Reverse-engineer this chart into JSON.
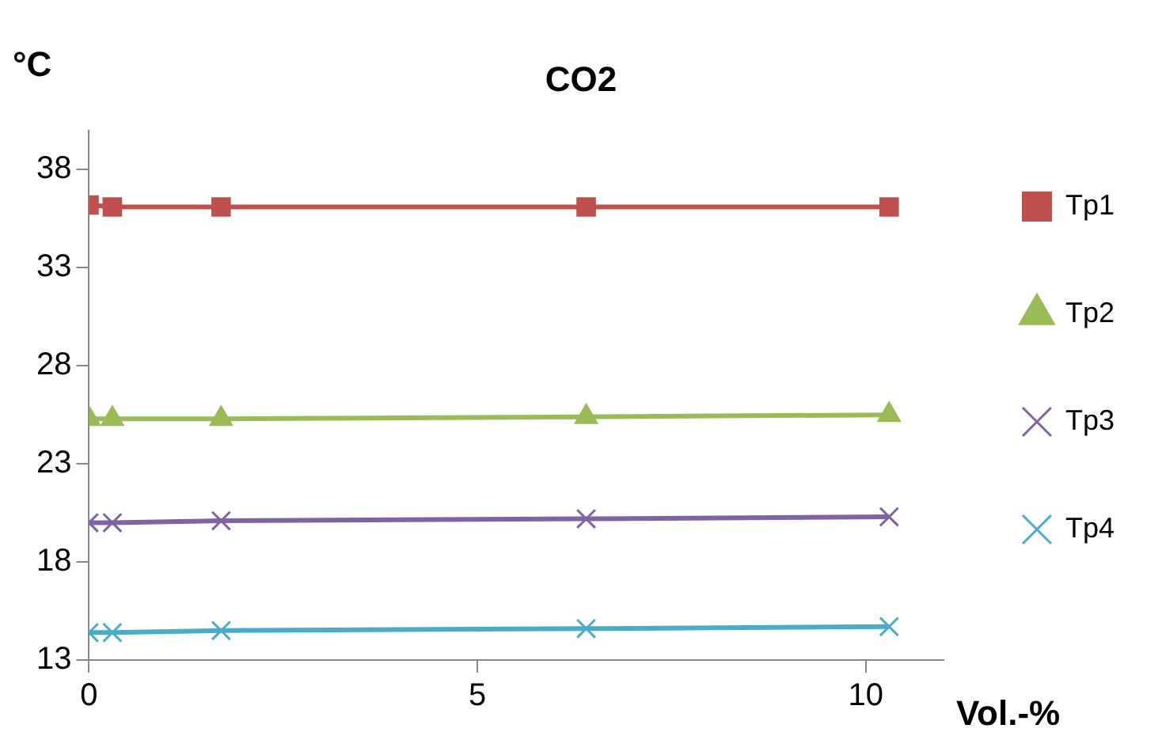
{
  "chart_data": {
    "type": "line",
    "title": "CO2",
    "xlabel": "Vol.-%",
    "ylabel": "°C",
    "x": [
      0,
      0.3,
      1.7,
      6.4,
      10.3
    ],
    "series": [
      {
        "name": "Tp1",
        "color": "#c0504d",
        "marker": "square",
        "values": [
          36.2,
          36.1,
          36.1,
          36.1,
          36.1
        ]
      },
      {
        "name": "Tp2",
        "color": "#9bbb59",
        "marker": "triangle",
        "values": [
          25.3,
          25.3,
          25.3,
          25.4,
          25.5
        ]
      },
      {
        "name": "Tp3",
        "color": "#8064a2",
        "marker": "cross",
        "values": [
          20.0,
          20.0,
          20.1,
          20.2,
          20.3
        ]
      },
      {
        "name": "Tp4",
        "color": "#4bacc6",
        "marker": "cross",
        "values": [
          14.4,
          14.4,
          14.5,
          14.6,
          14.7
        ]
      }
    ],
    "xlim": [
      0,
      11
    ],
    "xticks": [
      0,
      5,
      10
    ],
    "ylim": [
      13,
      40
    ],
    "yticks": [
      13,
      18,
      23,
      28,
      33,
      38
    ],
    "grid": false,
    "legend": "right"
  }
}
